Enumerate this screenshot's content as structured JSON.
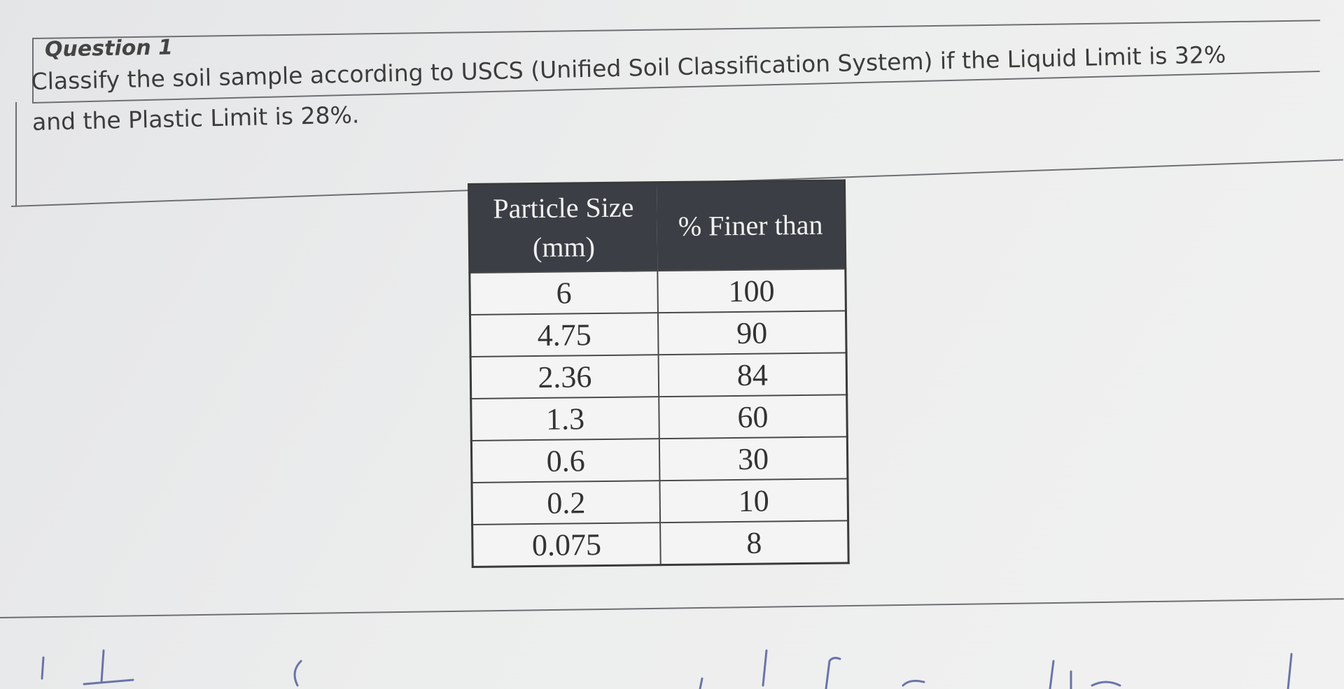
{
  "question": {
    "title": "Question 1",
    "text": [
      "Classify the soil sample according to USCS (Unified Soil Classification System) if the Liquid Limit is 32%",
      "and the Plastic Limit is 28%."
    ]
  },
  "table": {
    "headers": [
      "Particle Size (mm)",
      "% Finer than"
    ],
    "rows": [
      [
        "6",
        "100"
      ],
      [
        "4.75",
        "90"
      ],
      [
        "2.36",
        "84"
      ],
      [
        "1.3",
        "60"
      ],
      [
        "0.6",
        "30"
      ],
      [
        "0.2",
        "10"
      ],
      [
        "0.075",
        "8"
      ]
    ]
  }
}
